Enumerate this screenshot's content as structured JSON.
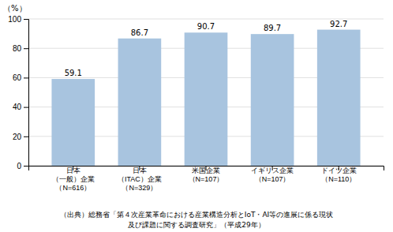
{
  "chart_data": {
    "type": "bar",
    "categories": [
      "日本\n（一般）企業\n（N=616）",
      "日本\n（ITAC）企業\n（N=329）",
      "米国企業\n（N=107）",
      "イギリス企業\n（N=107）",
      "ドイツ企業\n（N=110）"
    ],
    "values": [
      59.1,
      86.7,
      90.7,
      89.7,
      92.7
    ],
    "color": "#a8c4df",
    "y_label": "（%）",
    "ylim": [
      0,
      100
    ],
    "yticks": [
      0,
      20,
      40,
      60,
      80,
      100
    ],
    "grid": true,
    "data_labels": true,
    "annotations": [
      "（出典）総務省「第４次産業革命における産業構造分析とIoT・AI等の進展に係る現状",
      "及び課題に関する調査研究」（平成29年）"
    ]
  }
}
